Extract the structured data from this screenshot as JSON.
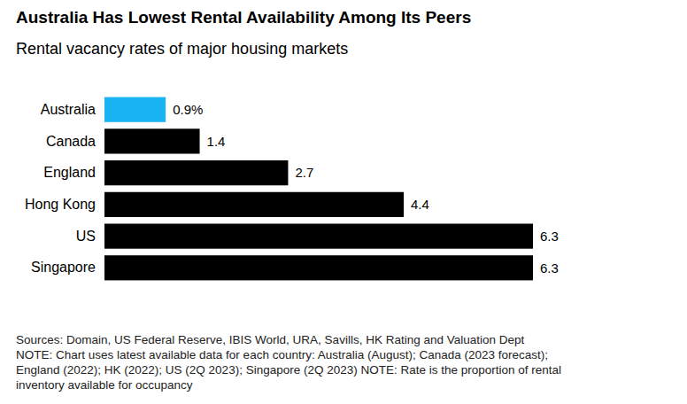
{
  "chart_data": {
    "type": "bar",
    "orientation": "horizontal",
    "title": "Australia Has Lowest Rental Availability Among Its Peers",
    "subtitle": "Rental vacancy rates of major housing markets",
    "categories": [
      "Australia",
      "Canada",
      "England",
      "Hong Kong",
      "US",
      "Singapore"
    ],
    "values": [
      0.9,
      1.4,
      2.7,
      4.4,
      6.3,
      6.3
    ],
    "value_labels": [
      "0.9%",
      "1.4",
      "2.7",
      "4.4",
      "6.3",
      "6.3"
    ],
    "colors": [
      "#1ab4f5",
      "#000000",
      "#000000",
      "#000000",
      "#000000",
      "#000000"
    ],
    "data_labels": true,
    "tick_labels": "y",
    "grid": false,
    "notes": [
      "Sources: Domain, US Federal Reserve, IBIS World, URA, Savills, HK Rating and Valuation Dept",
      "NOTE: Chart uses latest available data for each country: Australia (August); Canada (2023 forecast);",
      "England (2022); HK (2022); US (2Q 2023); Singapore (2Q 2023) NOTE: Rate is the proportion of rental",
      "inventory available for occupancy"
    ]
  }
}
